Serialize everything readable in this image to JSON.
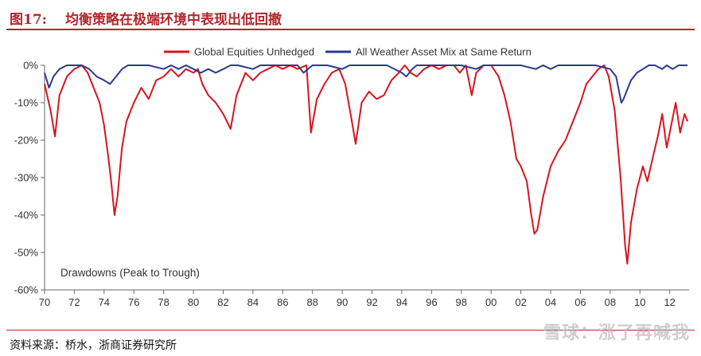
{
  "figure": {
    "number": "图17:",
    "title": "均衡策略在极端环境中表现出低回撤",
    "source": "资料来源：桥水，浙商证券研究所",
    "watermark": "雪球：涨了再喊我",
    "accent_color": "#b3262d"
  },
  "chart_data": {
    "type": "line",
    "title": "",
    "xlabel": "",
    "ylabel": "",
    "annotation": "Drawdowns (Peak to Trough)",
    "x_tick_labels": [
      "70",
      "72",
      "74",
      "76",
      "78",
      "80",
      "82",
      "84",
      "86",
      "88",
      "90",
      "92",
      "94",
      "96",
      "98",
      "00",
      "02",
      "04",
      "06",
      "08",
      "10",
      "12"
    ],
    "y_tick_labels": [
      "0%",
      "-10%",
      "-20%",
      "-30%",
      "-40%",
      "-50%",
      "-60%"
    ],
    "xlim": [
      1970,
      2013.3
    ],
    "ylim": [
      -60,
      0
    ],
    "grid": false,
    "legend_placement": "top-center",
    "series": [
      {
        "name": "Global Equities Unhedged",
        "color": "#d7141f",
        "points": [
          [
            1970.0,
            -5
          ],
          [
            1970.4,
            -12
          ],
          [
            1970.7,
            -19
          ],
          [
            1971.0,
            -8
          ],
          [
            1971.5,
            -3
          ],
          [
            1972.0,
            -1
          ],
          [
            1972.5,
            0
          ],
          [
            1972.9,
            -2
          ],
          [
            1973.3,
            -6
          ],
          [
            1973.7,
            -10
          ],
          [
            1974.0,
            -16
          ],
          [
            1974.3,
            -25
          ],
          [
            1974.5,
            -32
          ],
          [
            1974.7,
            -40
          ],
          [
            1974.9,
            -35
          ],
          [
            1975.2,
            -22
          ],
          [
            1975.5,
            -15
          ],
          [
            1976.0,
            -10
          ],
          [
            1976.5,
            -6
          ],
          [
            1977.0,
            -9
          ],
          [
            1977.5,
            -4
          ],
          [
            1978.0,
            -3
          ],
          [
            1978.5,
            -1
          ],
          [
            1979.0,
            -3
          ],
          [
            1979.5,
            -1
          ],
          [
            1980.0,
            -2
          ],
          [
            1980.3,
            -1
          ],
          [
            1980.6,
            -5
          ],
          [
            1981.0,
            -8
          ],
          [
            1981.5,
            -10
          ],
          [
            1982.0,
            -13
          ],
          [
            1982.5,
            -17
          ],
          [
            1982.9,
            -8
          ],
          [
            1983.5,
            -2
          ],
          [
            1984.0,
            -4
          ],
          [
            1984.5,
            -2
          ],
          [
            1985.0,
            -1
          ],
          [
            1985.5,
            0
          ],
          [
            1986.0,
            -1
          ],
          [
            1986.5,
            0
          ],
          [
            1987.0,
            -1
          ],
          [
            1987.6,
            0
          ],
          [
            1987.9,
            -18
          ],
          [
            1988.3,
            -9
          ],
          [
            1988.8,
            -5
          ],
          [
            1989.3,
            -2
          ],
          [
            1989.8,
            -1
          ],
          [
            1990.2,
            -5
          ],
          [
            1990.6,
            -14
          ],
          [
            1990.9,
            -21
          ],
          [
            1991.3,
            -10
          ],
          [
            1991.8,
            -7
          ],
          [
            1992.3,
            -9
          ],
          [
            1992.8,
            -8
          ],
          [
            1993.3,
            -4
          ],
          [
            1993.8,
            -2
          ],
          [
            1994.2,
            0
          ],
          [
            1994.6,
            -2
          ],
          [
            1995.0,
            -3
          ],
          [
            1995.5,
            -1
          ],
          [
            1996.0,
            0
          ],
          [
            1996.5,
            -1
          ],
          [
            1997.0,
            0
          ],
          [
            1997.5,
            0
          ],
          [
            1997.9,
            -2
          ],
          [
            1998.3,
            0
          ],
          [
            1998.7,
            -8
          ],
          [
            1999.0,
            -2
          ],
          [
            1999.5,
            0
          ],
          [
            2000.0,
            0
          ],
          [
            2000.5,
            -3
          ],
          [
            2000.9,
            -8
          ],
          [
            2001.3,
            -15
          ],
          [
            2001.7,
            -25
          ],
          [
            2002.0,
            -27
          ],
          [
            2002.4,
            -31
          ],
          [
            2002.7,
            -40
          ],
          [
            2002.9,
            -45
          ],
          [
            2003.1,
            -44
          ],
          [
            2003.5,
            -35
          ],
          [
            2004.0,
            -27
          ],
          [
            2004.5,
            -23
          ],
          [
            2005.0,
            -20
          ],
          [
            2005.5,
            -15
          ],
          [
            2006.0,
            -10
          ],
          [
            2006.4,
            -5
          ],
          [
            2006.8,
            -3
          ],
          [
            2007.2,
            -1
          ],
          [
            2007.6,
            0
          ],
          [
            2007.9,
            -3
          ],
          [
            2008.3,
            -12
          ],
          [
            2008.7,
            -30
          ],
          [
            2009.0,
            -48
          ],
          [
            2009.15,
            -53
          ],
          [
            2009.4,
            -42
          ],
          [
            2009.8,
            -33
          ],
          [
            2010.2,
            -27
          ],
          [
            2010.5,
            -31
          ],
          [
            2010.9,
            -24
          ],
          [
            2011.2,
            -19
          ],
          [
            2011.5,
            -13
          ],
          [
            2011.8,
            -22
          ],
          [
            2012.1,
            -16
          ],
          [
            2012.4,
            -10
          ],
          [
            2012.7,
            -18
          ],
          [
            2013.0,
            -13
          ],
          [
            2013.2,
            -15
          ]
        ]
      },
      {
        "name": "All Weather Asset Mix at Same Return",
        "color": "#2b3a8f",
        "points": [
          [
            1970.0,
            -2
          ],
          [
            1970.3,
            -6
          ],
          [
            1970.6,
            -3
          ],
          [
            1971.0,
            -1
          ],
          [
            1971.5,
            0
          ],
          [
            1972.0,
            0
          ],
          [
            1972.5,
            0
          ],
          [
            1973.0,
            -1
          ],
          [
            1973.5,
            -3
          ],
          [
            1974.0,
            -4
          ],
          [
            1974.4,
            -5
          ],
          [
            1974.8,
            -3
          ],
          [
            1975.2,
            -1
          ],
          [
            1975.6,
            0
          ],
          [
            1976.0,
            0
          ],
          [
            1977.0,
            0
          ],
          [
            1978.0,
            -1
          ],
          [
            1978.5,
            0
          ],
          [
            1979.0,
            -1
          ],
          [
            1979.5,
            0
          ],
          [
            1980.0,
            -1
          ],
          [
            1980.5,
            -2
          ],
          [
            1981.0,
            -1
          ],
          [
            1981.5,
            -2
          ],
          [
            1982.0,
            -1
          ],
          [
            1982.5,
            0
          ],
          [
            1983.0,
            0
          ],
          [
            1984.0,
            -1
          ],
          [
            1984.5,
            0
          ],
          [
            1985.0,
            0
          ],
          [
            1986.0,
            0
          ],
          [
            1987.0,
            0
          ],
          [
            1987.4,
            -2
          ],
          [
            1987.7,
            -1
          ],
          [
            1988.0,
            0
          ],
          [
            1989.0,
            0
          ],
          [
            1990.0,
            -1
          ],
          [
            1990.5,
            0
          ],
          [
            1991.0,
            0
          ],
          [
            1992.0,
            0
          ],
          [
            1993.0,
            0
          ],
          [
            1994.0,
            -2
          ],
          [
            1994.3,
            -3
          ],
          [
            1994.7,
            -1
          ],
          [
            1995.0,
            0
          ],
          [
            1996.0,
            0
          ],
          [
            1997.0,
            0
          ],
          [
            1998.0,
            0
          ],
          [
            1999.0,
            -1
          ],
          [
            1999.5,
            0
          ],
          [
            2000.0,
            0
          ],
          [
            2001.0,
            0
          ],
          [
            2002.0,
            0
          ],
          [
            2003.0,
            -1
          ],
          [
            2003.5,
            0
          ],
          [
            2004.0,
            -1
          ],
          [
            2004.5,
            0
          ],
          [
            2005.0,
            0
          ],
          [
            2006.0,
            0
          ],
          [
            2007.0,
            0
          ],
          [
            2008.0,
            -1
          ],
          [
            2008.4,
            -3
          ],
          [
            2008.75,
            -10
          ],
          [
            2008.9,
            -9
          ],
          [
            2009.1,
            -7
          ],
          [
            2009.4,
            -4
          ],
          [
            2009.8,
            -2
          ],
          [
            2010.2,
            -1
          ],
          [
            2010.6,
            0
          ],
          [
            2011.0,
            0
          ],
          [
            2011.5,
            -1
          ],
          [
            2011.8,
            0
          ],
          [
            2012.2,
            -1
          ],
          [
            2012.6,
            0
          ],
          [
            2013.2,
            0
          ]
        ]
      }
    ]
  }
}
